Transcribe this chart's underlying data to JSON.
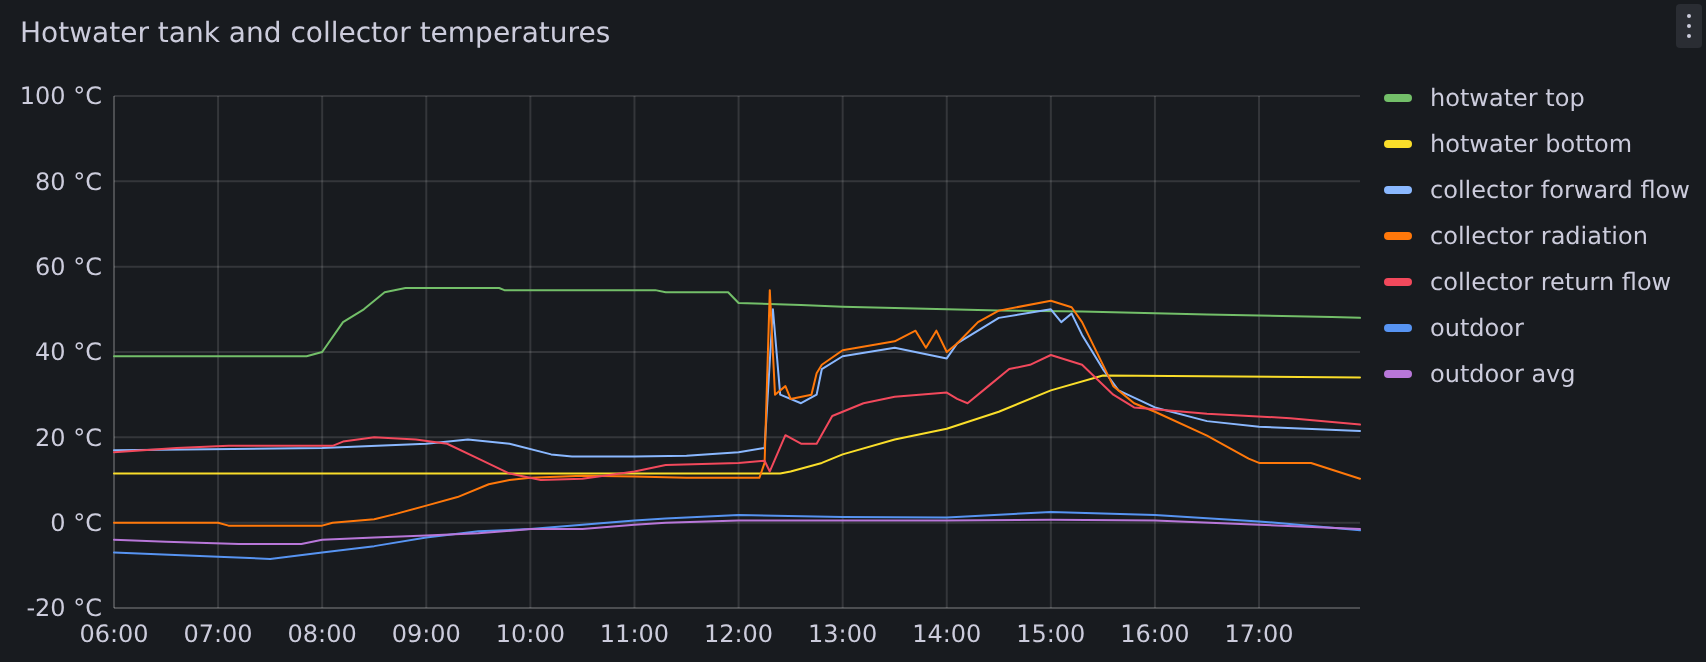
{
  "chart_data": {
    "type": "line",
    "title": "Hotwater tank and collector temperatures",
    "legend": "right",
    "grid": true,
    "marker": "none",
    "line_style": "solid",
    "xlim": [
      6,
      17.97
    ],
    "xticks": [
      {
        "value": 6,
        "label": "06:00"
      },
      {
        "value": 7,
        "label": "07:00"
      },
      {
        "value": 8,
        "label": "08:00"
      },
      {
        "value": 9,
        "label": "09:00"
      },
      {
        "value": 10,
        "label": "10:00"
      },
      {
        "value": 11,
        "label": "11:00"
      },
      {
        "value": 12,
        "label": "12:00"
      },
      {
        "value": 13,
        "label": "13:00"
      },
      {
        "value": 14,
        "label": "14:00"
      },
      {
        "value": 15,
        "label": "15:00"
      },
      {
        "value": 16,
        "label": "16:00"
      },
      {
        "value": 17,
        "label": "17:00"
      }
    ],
    "ylim": [
      -20,
      100
    ],
    "yticks": [
      {
        "value": -20,
        "label": "-20 °C"
      },
      {
        "value": 0,
        "label": "0 °C"
      },
      {
        "value": 20,
        "label": "20 °C"
      },
      {
        "value": 40,
        "label": "40 °C"
      },
      {
        "value": 60,
        "label": "60 °C"
      },
      {
        "value": 80,
        "label": "80 °C"
      },
      {
        "value": 100,
        "label": "100 °C"
      }
    ],
    "series": [
      {
        "name": "hotwater top",
        "color": "#73bf69",
        "x": [
          6,
          7.85,
          8,
          8.2,
          8.4,
          8.6,
          8.8,
          9.7,
          9.75,
          11.2,
          11.3,
          11.9,
          12,
          12.6,
          13,
          14,
          14.5,
          15.3,
          16.5,
          17.7,
          17.97
        ],
        "values": [
          39,
          39,
          40,
          47,
          50,
          54,
          55,
          55,
          54.5,
          54.5,
          54,
          54,
          51.5,
          51,
          50.6,
          50,
          49.7,
          49.5,
          48.8,
          48.2,
          48
        ]
      },
      {
        "name": "hotwater bottom",
        "color": "#fade2a",
        "x": [
          6,
          12.4,
          12.5,
          12.8,
          13,
          13.5,
          14,
          14.5,
          15,
          15.5,
          17.97
        ],
        "values": [
          11.5,
          11.5,
          12,
          14,
          16,
          19.5,
          22,
          26,
          31,
          34.5,
          34
        ]
      },
      {
        "name": "collector forward flow",
        "color": "#8ab8ff",
        "x": [
          6,
          8,
          9,
          9.4,
          9.8,
          10.2,
          10.4,
          11,
          11.5,
          12,
          12.25,
          12.33,
          12.4,
          12.6,
          12.75,
          12.8,
          13,
          13.5,
          14,
          14.1,
          14.5,
          15,
          15.1,
          15.2,
          15.3,
          15.5,
          15.65,
          16,
          16.5,
          17,
          17.97
        ],
        "values": [
          17,
          17.5,
          18.5,
          19.5,
          18.5,
          16,
          15.5,
          15.5,
          15.7,
          16.5,
          17.5,
          50,
          30,
          28,
          30,
          36,
          39,
          41,
          38.5,
          42,
          48,
          50,
          47,
          49,
          44,
          36,
          31,
          27,
          23.8,
          22.5,
          21.5
        ]
      },
      {
        "name": "collector radiation",
        "color": "#ff780a",
        "x": [
          6,
          7,
          7.1,
          8,
          8.1,
          8.5,
          8.7,
          9,
          9.3,
          9.6,
          9.8,
          10,
          10.5,
          11,
          11.5,
          12.2,
          12.25,
          12.3,
          12.35,
          12.45,
          12.5,
          12.7,
          12.75,
          12.8,
          13,
          13.5,
          13.7,
          13.8,
          13.9,
          14,
          14.1,
          14.3,
          14.5,
          15,
          15.2,
          15.3,
          15.6,
          15.8,
          16,
          16.5,
          16.9,
          17,
          17.5,
          17.97
        ],
        "values": [
          0,
          0,
          -0.7,
          -0.7,
          0,
          0.8,
          2,
          4,
          6,
          9,
          10,
          10.5,
          11,
          10.8,
          10.5,
          10.5,
          14,
          54.5,
          30,
          32,
          29,
          30,
          35,
          37,
          40.4,
          42.5,
          45,
          41,
          45,
          40,
          42,
          47,
          49.7,
          52,
          50.5,
          47,
          32,
          28,
          26,
          20.4,
          15,
          14,
          14,
          10.3
        ]
      },
      {
        "name": "collector return flow",
        "color": "#f2495c",
        "x": [
          6,
          6.6,
          7.1,
          8.1,
          8.2,
          8.5,
          8.9,
          9.2,
          9.5,
          9.8,
          10.1,
          10.5,
          11,
          11.3,
          12,
          12.25,
          12.3,
          12.45,
          12.6,
          12.75,
          12.9,
          13.2,
          13.5,
          14,
          14.1,
          14.2,
          14.4,
          14.6,
          14.8,
          15,
          15.3,
          15.6,
          15.8,
          16.5,
          17.3,
          17.97
        ],
        "values": [
          16.5,
          17.5,
          18,
          18,
          19,
          20,
          19.5,
          18.5,
          15,
          11.5,
          10,
          10.3,
          12,
          13.5,
          14,
          14.5,
          12,
          20.5,
          18.5,
          18.5,
          25,
          28,
          29.5,
          30.5,
          29,
          28,
          32,
          36,
          37,
          39.3,
          37,
          30,
          27,
          25.5,
          24.5,
          23
        ]
      },
      {
        "name": "outdoor",
        "color": "#5794f2",
        "x": [
          6,
          7,
          7.5,
          8,
          8.5,
          9,
          9.5,
          10,
          10.5,
          11,
          11.3,
          12,
          13,
          14,
          15,
          16,
          17,
          17.97
        ],
        "values": [
          -7,
          -8,
          -8.5,
          -7,
          -5.5,
          -3.5,
          -2,
          -1.5,
          -0.5,
          0.5,
          1,
          1.8,
          1.3,
          1.2,
          2.5,
          1.8,
          0.3,
          -1.8
        ]
      },
      {
        "name": "outdoor avg",
        "color": "#b877d9",
        "x": [
          6,
          6.5,
          7.2,
          7.8,
          8,
          8.5,
          9,
          9.5,
          10,
          10.5,
          11,
          11.3,
          12,
          14,
          15,
          16,
          17,
          17.97
        ],
        "values": [
          -4,
          -4.5,
          -5,
          -5,
          -4,
          -3.5,
          -3,
          -2.5,
          -1.5,
          -1.5,
          -0.5,
          0,
          0.5,
          0.5,
          0.7,
          0.5,
          -0.5,
          -1.5
        ]
      }
    ]
  }
}
